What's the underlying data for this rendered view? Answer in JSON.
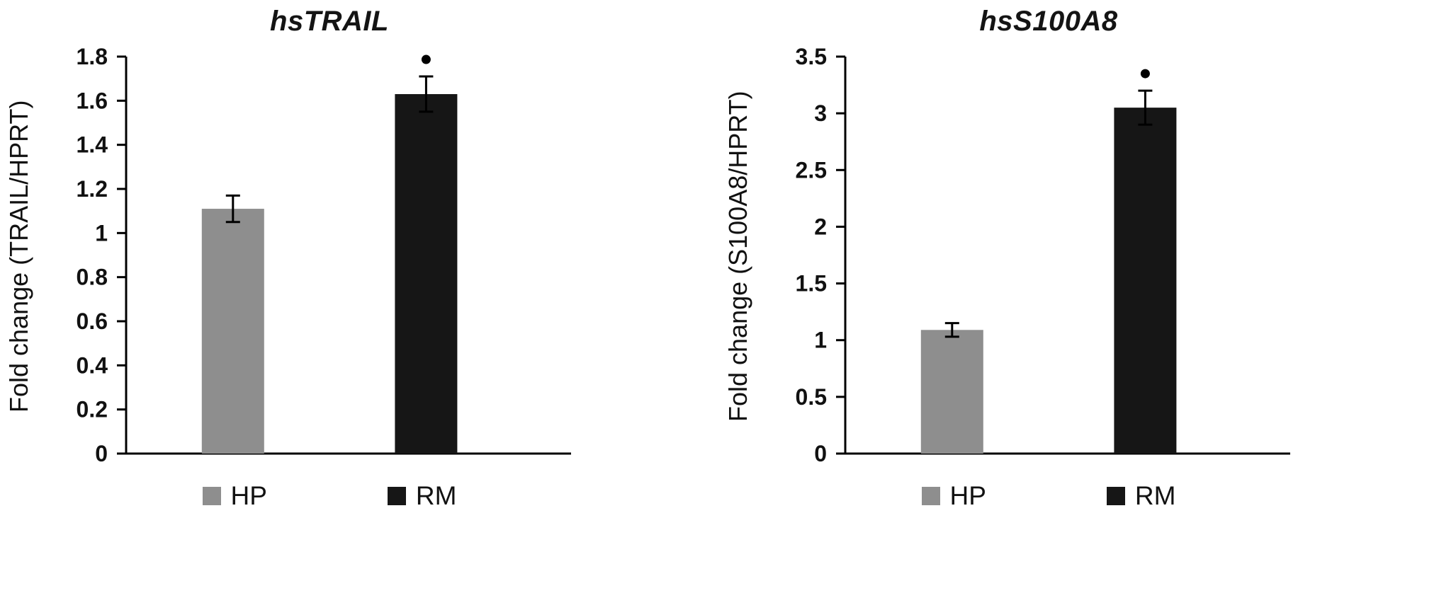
{
  "chart_data": [
    {
      "type": "bar",
      "title": "hsTRAIL",
      "ylabel": "Fold change (TRAIL/HPRT)",
      "xlabel": "",
      "ylim": [
        0,
        1.8
      ],
      "grid": false,
      "legend_position": "bottom",
      "categories": [
        "HP",
        "RM"
      ],
      "series": [
        {
          "name": "HP",
          "value": 1.11,
          "error": 0.06,
          "color": "#8e8e8e",
          "significant": false
        },
        {
          "name": "RM",
          "value": 1.63,
          "error": 0.08,
          "color": "#161616",
          "significant": true
        }
      ],
      "yticks": [
        {
          "label": "0",
          "value": 0
        },
        {
          "label": "0.2",
          "value": 0.2
        },
        {
          "label": "0.4",
          "value": 0.4
        },
        {
          "label": "0.6",
          "value": 0.6
        },
        {
          "label": "0.8",
          "value": 0.8
        },
        {
          "label": "1",
          "value": 1
        },
        {
          "label": "1.2",
          "value": 1.2
        },
        {
          "label": "1.4",
          "value": 1.4
        },
        {
          "label": "1.6",
          "value": 1.6
        },
        {
          "label": "1.8",
          "value": 1.8
        }
      ],
      "significance_marker": "•"
    },
    {
      "type": "bar",
      "title": "hsS100A8",
      "ylabel": "Fold change (S100A8/HPRT)",
      "xlabel": "",
      "ylim": [
        0,
        3.5
      ],
      "grid": false,
      "legend_position": "bottom",
      "categories": [
        "HP",
        "RM"
      ],
      "series": [
        {
          "name": "HP",
          "value": 1.09,
          "error": 0.06,
          "color": "#8e8e8e",
          "significant": false
        },
        {
          "name": "RM",
          "value": 3.05,
          "error": 0.15,
          "color": "#161616",
          "significant": true
        }
      ],
      "yticks": [
        {
          "label": "0",
          "value": 0
        },
        {
          "label": "0.5",
          "value": 0.5
        },
        {
          "label": "1",
          "value": 1
        },
        {
          "label": "1.5",
          "value": 1.5
        },
        {
          "label": "2",
          "value": 2
        },
        {
          "label": "2.5",
          "value": 2.5
        },
        {
          "label": "3",
          "value": 3
        },
        {
          "label": "3.5",
          "value": 3.5
        }
      ],
      "significance_marker": "•"
    }
  ]
}
